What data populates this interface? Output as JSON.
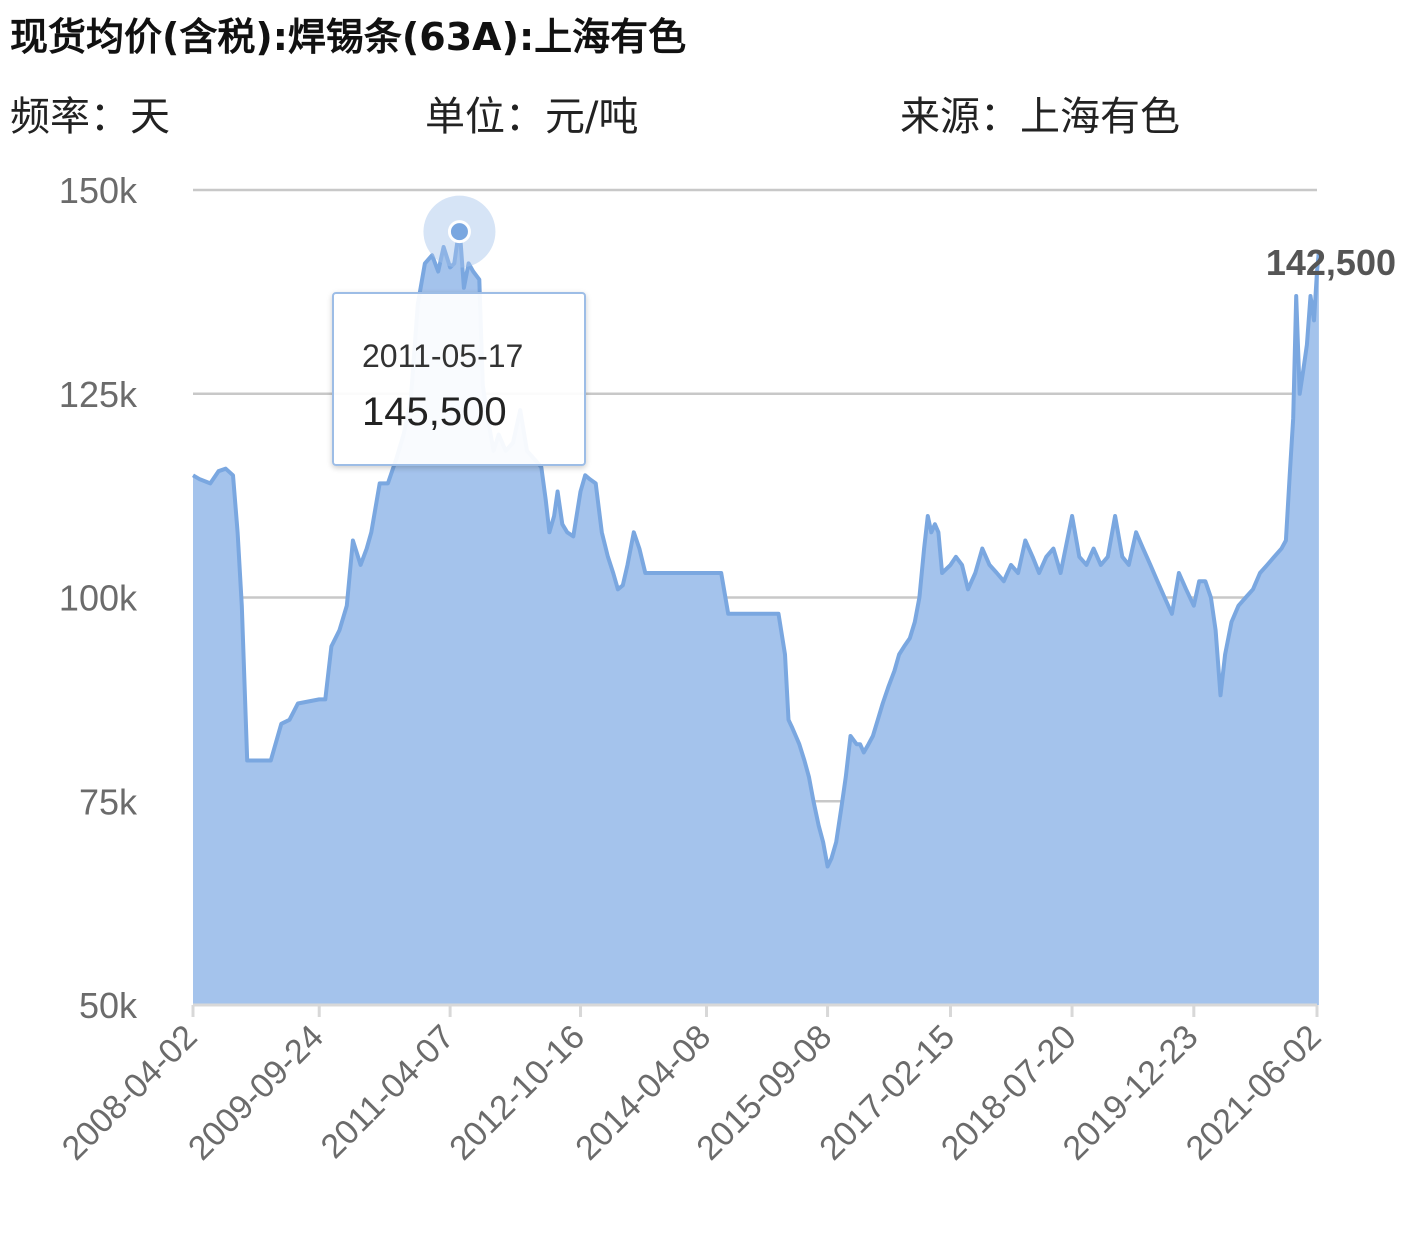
{
  "header": {
    "title": "现货均价(含税):焊锡条(63A):上海有色",
    "frequency": "频率：天",
    "unit": "单位：元/吨",
    "source": "来源：上海有色"
  },
  "tooltip": {
    "date": "2011-05-17",
    "value": "145,500"
  },
  "end_label": "142,500",
  "colors": {
    "line": "#7aa7e0",
    "fill": "#a4c3ec",
    "grid": "#c8c8c8",
    "axis": "#d8d8d8"
  },
  "chart_data": {
    "type": "area",
    "title": "现货均价(含税):焊锡条(63A):上海有色",
    "xlabel": "",
    "ylabel": "",
    "ylim": [
      50000,
      150000
    ],
    "y_ticks": [
      "50k",
      "75k",
      "100k",
      "125k",
      "150k"
    ],
    "x_ticks": [
      "2008-04-02",
      "2009-09-24",
      "2011-04-07",
      "2012-10-16",
      "2014-04-08",
      "2015-09-08",
      "2017-02-15",
      "2018-07-20",
      "2019-12-23",
      "2021-06-02"
    ],
    "grid": true,
    "highlight": {
      "x": "2011-05-17",
      "y": 145500
    },
    "series": [
      {
        "x": [
          "2008-04-02",
          "2008-05-01",
          "2008-06-15",
          "2008-07-20",
          "2008-08-20",
          "2008-09-20",
          "2008-10-10",
          "2008-10-28",
          "2008-11-20",
          "2008-12-25",
          "2009-03-01",
          "2009-04-15",
          "2009-05-20",
          "2009-06-25",
          "2009-09-24",
          "2009-10-20",
          "2009-11-15",
          "2009-12-20",
          "2010-01-20",
          "2010-02-15",
          "2010-03-20",
          "2010-04-15",
          "2010-05-05",
          "2010-06-10",
          "2010-07-15",
          "2010-08-20",
          "2010-09-20",
          "2010-10-20",
          "2010-11-20",
          "2010-12-20",
          "2011-01-20",
          "2011-02-15",
          "2011-03-10",
          "2011-04-07",
          "2011-04-25",
          "2011-05-17",
          "2011-06-05",
          "2011-06-25",
          "2011-07-15",
          "2011-08-10",
          "2011-08-25",
          "2011-09-15",
          "2011-10-10",
          "2011-11-01",
          "2011-12-01",
          "2012-01-01",
          "2012-02-01",
          "2012-03-01",
          "2012-04-01",
          "2012-05-01",
          "2012-05-20",
          "2012-06-05",
          "2012-06-25",
          "2012-07-10",
          "2012-07-30",
          "2012-08-20",
          "2012-09-15",
          "2012-10-16",
          "2012-11-05",
          "2012-11-25",
          "2012-12-20",
          "2013-01-15",
          "2013-02-10",
          "2013-03-05",
          "2013-03-25",
          "2013-04-15",
          "2013-05-05",
          "2013-06-01",
          "2013-06-25",
          "2013-07-20",
          "2013-08-15",
          "2013-09-10",
          "2013-10-05",
          "2013-10-30",
          "2013-11-20",
          "2013-12-15",
          "2014-01-10",
          "2014-02-05",
          "2014-03-01",
          "2014-04-08",
          "2014-05-10",
          "2014-06-10",
          "2014-07-10",
          "2014-08-10",
          "2014-09-10",
          "2014-10-10",
          "2014-11-10",
          "2014-12-10",
          "2015-01-10",
          "2015-02-10",
          "2015-03-10",
          "2015-03-25",
          "2015-04-10",
          "2015-04-25",
          "2015-05-10",
          "2015-06-01",
          "2015-06-20",
          "2015-07-10",
          "2015-08-01",
          "2015-08-20",
          "2015-09-08",
          "2015-09-25",
          "2015-10-15",
          "2015-11-05",
          "2015-11-25",
          "2015-12-15",
          "2016-01-10",
          "2016-01-25",
          "2016-02-10",
          "2016-03-01",
          "2016-03-20",
          "2016-04-10",
          "2016-05-01",
          "2016-05-25",
          "2016-06-20",
          "2016-07-10",
          "2016-08-01",
          "2016-08-25",
          "2016-09-15",
          "2016-10-05",
          "2016-10-25",
          "2016-11-10",
          "2016-11-25",
          "2016-12-10",
          "2016-12-25",
          "2017-01-10",
          "2017-02-15",
          "2017-03-10",
          "2017-04-05",
          "2017-05-01",
          "2017-06-01",
          "2017-07-01",
          "2017-08-01",
          "2017-09-01",
          "2017-10-01",
          "2017-11-01",
          "2017-12-01",
          "2018-01-01",
          "2018-02-01",
          "2018-03-01",
          "2018-04-01",
          "2018-05-01",
          "2018-06-01",
          "2018-07-20",
          "2018-08-20",
          "2018-09-20",
          "2018-10-20",
          "2018-11-20",
          "2018-12-20",
          "2019-01-20",
          "2019-02-20",
          "2019-03-20",
          "2019-04-20",
          "2019-05-20",
          "2019-06-20",
          "2019-07-20",
          "2019-08-20",
          "2019-09-20",
          "2019-10-20",
          "2019-11-20",
          "2019-12-23",
          "2020-01-15",
          "2020-02-10",
          "2020-03-05",
          "2020-03-25",
          "2020-04-15",
          "2020-05-05",
          "2020-06-01",
          "2020-07-01",
          "2020-08-01",
          "2020-09-01",
          "2020-10-01",
          "2020-11-01",
          "2020-12-01",
          "2021-01-01",
          "2021-01-20",
          "2021-02-05",
          "2021-02-20",
          "2021-03-05",
          "2021-03-20",
          "2021-04-05",
          "2021-04-20",
          "2021-05-05",
          "2021-05-20",
          "2021-06-02",
          "2021-06-10"
        ],
        "values": [
          115000,
          114500,
          114000,
          115500,
          115800,
          115000,
          108000,
          99000,
          80000,
          80000,
          80000,
          84500,
          85000,
          87000,
          87500,
          87500,
          94000,
          96000,
          99000,
          107000,
          104000,
          106000,
          108000,
          114000,
          114000,
          117000,
          120000,
          124000,
          136000,
          141000,
          142000,
          140000,
          143000,
          140500,
          141000,
          145500,
          138000,
          141000,
          140000,
          139000,
          126000,
          122000,
          118000,
          120000,
          118000,
          119000,
          123000,
          118000,
          117000,
          116000,
          112000,
          108000,
          110000,
          113000,
          109000,
          108000,
          107500,
          113000,
          115000,
          114500,
          114000,
          108000,
          105000,
          103000,
          101000,
          101500,
          104000,
          108000,
          106000,
          103000,
          103000,
          103000,
          103000,
          103000,
          103000,
          103000,
          103000,
          103000,
          103000,
          103000,
          103000,
          103000,
          98000,
          98000,
          98000,
          98000,
          98000,
          98000,
          98000,
          98000,
          93000,
          85000,
          84000,
          83000,
          82000,
          80000,
          78000,
          75000,
          72000,
          70000,
          67000,
          68000,
          70000,
          74000,
          78000,
          83000,
          82000,
          82000,
          81000,
          82000,
          83000,
          85000,
          87000,
          89000,
          91000,
          93000,
          94000,
          95000,
          97000,
          100000,
          106000,
          110000,
          108000,
          109000,
          108000,
          103000,
          104000,
          105000,
          104000,
          101000,
          103000,
          106000,
          104000,
          103000,
          102000,
          104000,
          103000,
          107000,
          105000,
          103000,
          105000,
          106000,
          103000,
          110000,
          105000,
          104000,
          106000,
          104000,
          105000,
          110000,
          105000,
          104000,
          108000,
          106000,
          104000,
          102000,
          100000,
          98000,
          103000,
          101000,
          99000,
          102000,
          102000,
          100000,
          96000,
          88000,
          93000,
          97000,
          99000,
          100000,
          101000,
          103000,
          104000,
          105000,
          106000,
          107000,
          115000,
          122000,
          137000,
          125000,
          128000,
          131000,
          137000,
          134000,
          140000,
          142500
        ]
      }
    ]
  }
}
